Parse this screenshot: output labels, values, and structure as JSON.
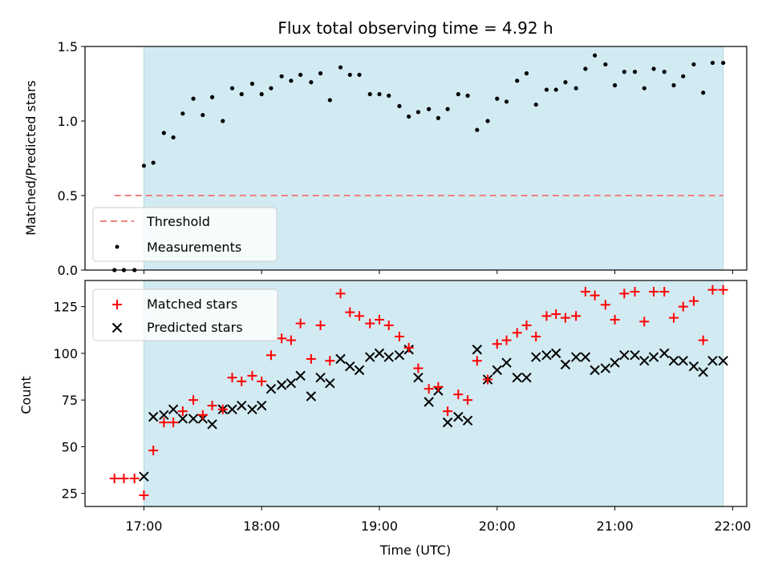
{
  "title": "Flux total observing time = 4.92 h",
  "colors": {
    "observing_window": "#add8e6",
    "threshold": "#f08080",
    "measurements": "#000000",
    "matched": "#ff0000",
    "predicted": "#000000"
  },
  "chart_data": [
    {
      "type": "scatter",
      "ylabel": "Matched/Predicted stars",
      "xlabel": "",
      "xlim": [
        16.5,
        22.12
      ],
      "ylim": [
        0.0,
        1.5
      ],
      "yticks": [
        "0.0",
        "0.5",
        "1.0",
        "1.5"
      ],
      "xtick_values": [
        17,
        18,
        19,
        20,
        21,
        22
      ],
      "shaded_span": [
        17.0,
        21.92
      ],
      "legend_position": "lower left",
      "threshold": {
        "name": "Threshold",
        "value": 0.5,
        "x_range": [
          16.75,
          21.92
        ],
        "style": "dashed"
      },
      "series": [
        {
          "name": "Measurements",
          "marker": "dot",
          "x": [
            16.75,
            16.83,
            16.92,
            17.0,
            17.08,
            17.17,
            17.25,
            17.33,
            17.42,
            17.5,
            17.58,
            17.67,
            17.75,
            17.83,
            17.92,
            18.0,
            18.08,
            18.17,
            18.25,
            18.33,
            18.42,
            18.5,
            18.58,
            18.67,
            18.75,
            18.83,
            18.92,
            19.0,
            19.08,
            19.17,
            19.25,
            19.33,
            19.42,
            19.5,
            19.58,
            19.67,
            19.75,
            19.83,
            19.92,
            20.0,
            20.08,
            20.17,
            20.25,
            20.33,
            20.42,
            20.5,
            20.58,
            20.67,
            20.75,
            20.83,
            20.92,
            21.0,
            21.08,
            21.17,
            21.25,
            21.33,
            21.42,
            21.5,
            21.58,
            21.67,
            21.75,
            21.83,
            21.92
          ],
          "y": [
            0.0,
            0.0,
            0.0,
            0.7,
            0.72,
            0.92,
            0.89,
            1.05,
            1.15,
            1.04,
            1.16,
            1.0,
            1.22,
            1.18,
            1.25,
            1.18,
            1.22,
            1.3,
            1.27,
            1.31,
            1.26,
            1.32,
            1.14,
            1.36,
            1.31,
            1.31,
            1.18,
            1.18,
            1.17,
            1.1,
            1.03,
            1.06,
            1.08,
            1.02,
            1.08,
            1.18,
            1.17,
            0.94,
            1.0,
            1.15,
            1.13,
            1.27,
            1.32,
            1.11,
            1.21,
            1.21,
            1.26,
            1.22,
            1.35,
            1.44,
            1.38,
            1.24,
            1.33,
            1.33,
            1.22,
            1.35,
            1.33,
            1.24,
            1.3,
            1.38,
            1.19,
            1.39,
            1.39
          ]
        }
      ]
    },
    {
      "type": "scatter",
      "ylabel": "Count",
      "xlabel": "Time (UTC)",
      "xlim": [
        16.5,
        22.12
      ],
      "ylim": [
        18,
        139
      ],
      "yticks": [
        "25",
        "50",
        "75",
        "100",
        "125"
      ],
      "ytick_values": [
        25,
        50,
        75,
        100,
        125
      ],
      "xticks": [
        "17:00",
        "18:00",
        "19:00",
        "20:00",
        "21:00",
        "22:00"
      ],
      "xtick_values": [
        17,
        18,
        19,
        20,
        21,
        22
      ],
      "shaded_span": [
        17.0,
        21.92
      ],
      "legend_position": "upper left",
      "series": [
        {
          "name": "Matched stars",
          "marker": "plus",
          "x": [
            16.75,
            16.83,
            16.92,
            17.0,
            17.08,
            17.17,
            17.25,
            17.33,
            17.42,
            17.5,
            17.58,
            17.67,
            17.75,
            17.83,
            17.92,
            18.0,
            18.08,
            18.17,
            18.25,
            18.33,
            18.42,
            18.5,
            18.58,
            18.67,
            18.75,
            18.83,
            18.92,
            19.0,
            19.08,
            19.17,
            19.25,
            19.33,
            19.42,
            19.5,
            19.58,
            19.67,
            19.75,
            19.83,
            19.92,
            20.0,
            20.08,
            20.17,
            20.25,
            20.33,
            20.42,
            20.5,
            20.58,
            20.67,
            20.75,
            20.83,
            20.92,
            21.0,
            21.08,
            21.17,
            21.25,
            21.33,
            21.42,
            21.5,
            21.58,
            21.67,
            21.75,
            21.83,
            21.92
          ],
          "y": [
            33,
            33,
            33,
            24,
            48,
            63,
            63,
            69,
            75,
            67,
            72,
            70,
            87,
            85,
            88,
            85,
            99,
            108,
            107,
            116,
            97,
            115,
            96,
            132,
            122,
            120,
            116,
            118,
            115,
            109,
            103,
            92,
            81,
            82,
            69,
            78,
            75,
            96,
            86,
            105,
            107,
            111,
            115,
            109,
            120,
            121,
            119,
            120,
            133,
            131,
            126,
            118,
            132,
            133,
            117,
            133,
            133,
            119,
            125,
            128,
            107,
            134,
            134
          ]
        },
        {
          "name": "Predicted stars",
          "marker": "x",
          "x": [
            17.0,
            17.08,
            17.17,
            17.25,
            17.33,
            17.42,
            17.5,
            17.58,
            17.67,
            17.75,
            17.83,
            17.92,
            18.0,
            18.08,
            18.17,
            18.25,
            18.33,
            18.42,
            18.5,
            18.58,
            18.67,
            18.75,
            18.83,
            18.92,
            19.0,
            19.08,
            19.17,
            19.25,
            19.33,
            19.42,
            19.5,
            19.58,
            19.67,
            19.75,
            19.83,
            19.92,
            20.0,
            20.08,
            20.17,
            20.25,
            20.33,
            20.42,
            20.5,
            20.58,
            20.67,
            20.75,
            20.83,
            20.92,
            21.0,
            21.08,
            21.17,
            21.25,
            21.33,
            21.42,
            21.5,
            21.58,
            21.67,
            21.75,
            21.83,
            21.92
          ],
          "y": [
            34,
            66,
            67,
            70,
            65,
            65,
            65,
            62,
            70,
            70,
            72,
            70,
            72,
            81,
            83,
            84,
            88,
            77,
            87,
            84,
            97,
            93,
            91,
            98,
            100,
            98,
            99,
            102,
            87,
            74,
            80,
            63,
            66,
            64,
            102,
            86,
            91,
            95,
            87,
            87,
            98,
            99,
            100,
            94,
            98,
            98,
            91,
            92,
            95,
            99,
            99,
            96,
            98,
            100,
            96,
            96,
            93,
            90,
            96,
            96
          ]
        }
      ]
    }
  ]
}
